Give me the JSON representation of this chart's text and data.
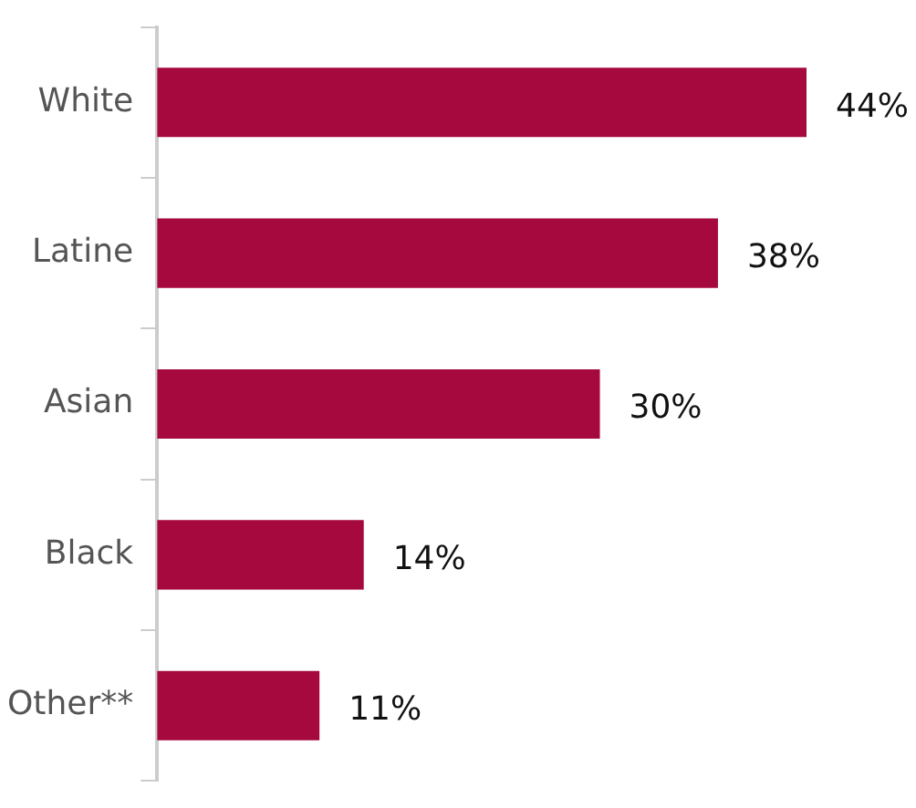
{
  "chart_data": {
    "type": "bar",
    "orientation": "horizontal",
    "categories": [
      "White",
      "Latine",
      "Asian",
      "Black",
      "Other**"
    ],
    "values": [
      44,
      38,
      30,
      14,
      11
    ],
    "value_labels": [
      "44%",
      "38%",
      "30%",
      "14%",
      "11%"
    ],
    "color": "#a6093d",
    "legend": false
  }
}
